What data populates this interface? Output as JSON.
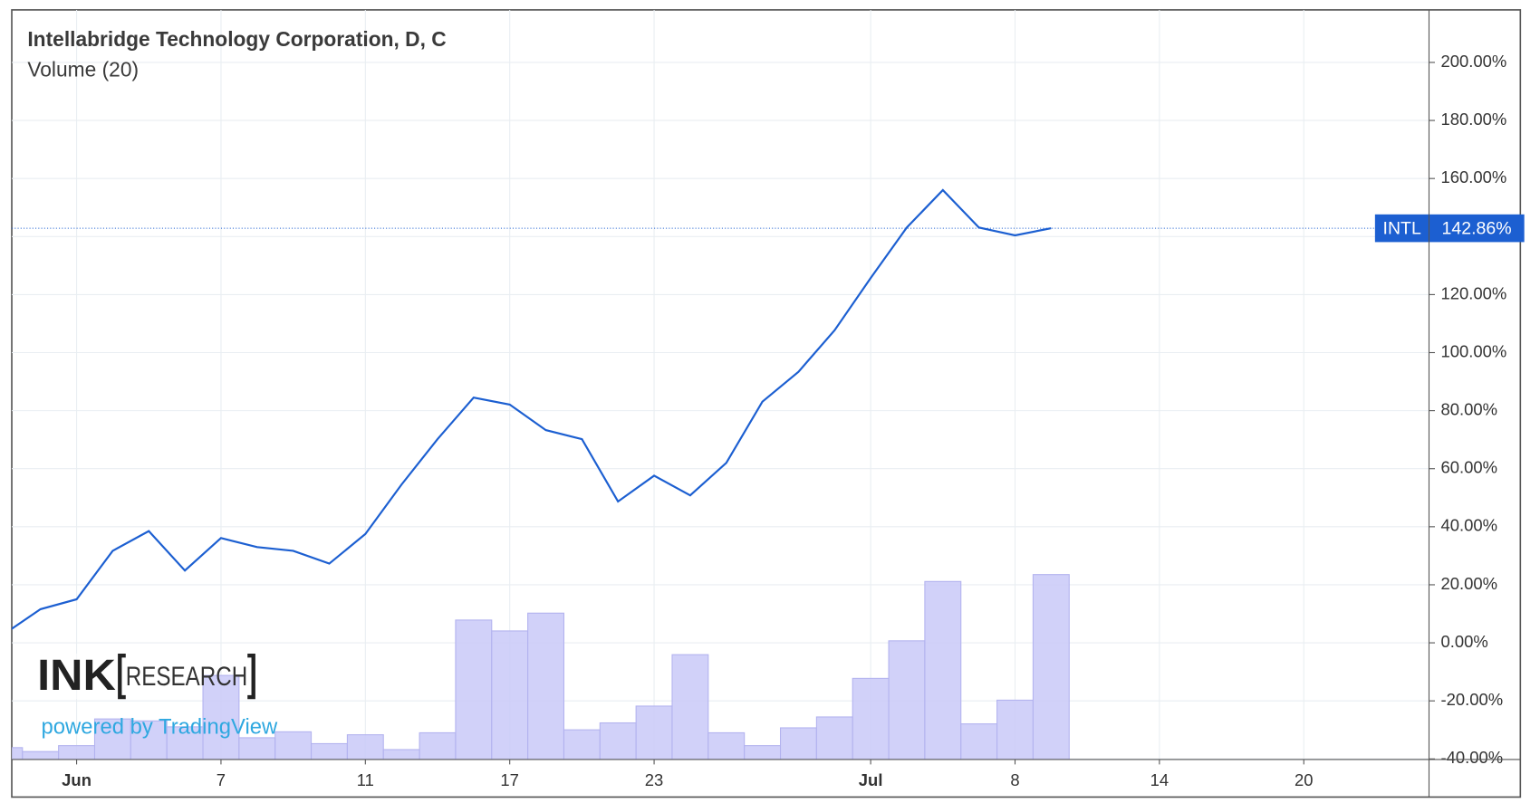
{
  "chart_data": {
    "type": "line",
    "title": "Intellabridge Technology Corporation, D, C",
    "subtitle": "Volume (20)",
    "categories": [
      null,
      null,
      "Jun",
      null,
      null,
      null,
      "7",
      null,
      null,
      null,
      "11",
      null,
      null,
      null,
      "17",
      null,
      null,
      null,
      "23",
      null,
      null,
      null,
      null,
      null,
      "Jul",
      null,
      null,
      null,
      "8",
      null,
      null,
      null,
      "14",
      null,
      null,
      null,
      "20",
      null,
      null,
      null
    ],
    "series": [
      {
        "name": "INTL",
        "color": "#1c5fd1",
        "values": [
          3.1,
          11.6,
          15.0,
          31.7,
          38.5,
          24.9,
          36.1,
          33.0,
          31.7,
          27.3,
          37.5,
          54.5,
          70.2,
          84.5,
          82.1,
          73.3,
          70.2,
          48.7,
          57.6,
          50.8,
          62.0,
          83.1,
          93.4,
          107.7,
          125.7,
          143.1,
          156.0,
          143.1,
          140.4,
          142.86,
          null,
          null,
          null,
          null,
          null,
          null,
          null,
          null,
          null,
          null
        ],
        "value_labels": [
          null,
          null,
          null,
          null,
          null,
          null,
          null,
          null,
          null,
          null,
          null,
          null,
          null,
          null,
          null,
          null,
          null,
          null,
          null,
          null,
          null,
          null,
          null,
          null,
          null,
          null,
          null,
          null,
          null,
          "142.86%",
          null,
          null,
          null,
          null,
          null,
          null,
          null,
          null,
          null,
          null
        ]
      },
      {
        "name": "Volume",
        "color": "#c9c9f8",
        "axis": "volume",
        "values": [
          12,
          8,
          14,
          41,
          39,
          33,
          85,
          22,
          28,
          16,
          25,
          10,
          27,
          141,
          130,
          148,
          30,
          37,
          54,
          106,
          27,
          14,
          32,
          43,
          82,
          120,
          180,
          36,
          60,
          187,
          null,
          null,
          null,
          null,
          null,
          null,
          null,
          null,
          null,
          null
        ]
      }
    ],
    "ylim": [
      -40.2,
      218.1
    ],
    "yticks": [
      {
        "value": -40,
        "label": "-40.00%"
      },
      {
        "value": -20,
        "label": "-20.00%"
      },
      {
        "value": 0,
        "label": "0.00%"
      },
      {
        "value": 20,
        "label": "20.00%"
      },
      {
        "value": 40,
        "label": "40.00%"
      },
      {
        "value": 60,
        "label": "60.00%"
      },
      {
        "value": 80,
        "label": "80.00%"
      },
      {
        "value": 100,
        "label": "100.00%"
      },
      {
        "value": 120,
        "label": "120.00%"
      },
      {
        "value": 140,
        "label": "140.00%"
      },
      {
        "value": 160,
        "label": "160.00%"
      },
      {
        "value": 180,
        "label": "180.00%"
      },
      {
        "value": 200,
        "label": "200.00%"
      }
    ],
    "volume_lim": [
      0,
      758
    ],
    "grid": true,
    "watermark": {
      "logo_left": "INK",
      "logo_right": "RESEARCH",
      "powered": "powered by TradingView"
    }
  }
}
